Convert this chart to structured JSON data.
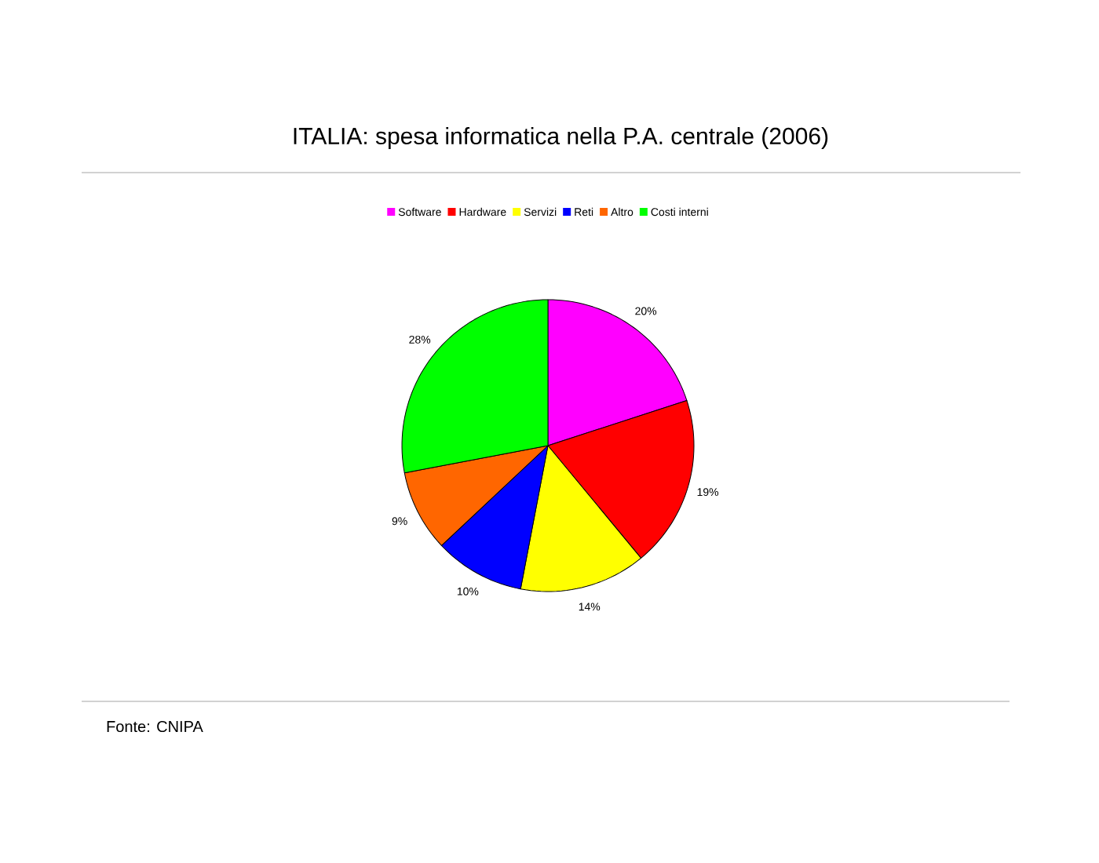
{
  "chart_data": {
    "type": "pie",
    "title": "ITALIA: spesa informatica nella P.A. centrale (2006)",
    "categories": [
      "Software",
      "Hardware",
      "Servizi",
      "Reti",
      "Altro",
      "Costi interni"
    ],
    "values": [
      20,
      19,
      14,
      10,
      9,
      28
    ],
    "value_labels": [
      "20%",
      "19%",
      "14%",
      "10%",
      "9%",
      "28%"
    ],
    "colors": [
      "#ff00ff",
      "#ff0000",
      "#ffff00",
      "#0000ff",
      "#ff6600",
      "#00ff00"
    ],
    "legend": "top",
    "annotations": [
      "Fonte: CNIPA"
    ]
  }
}
